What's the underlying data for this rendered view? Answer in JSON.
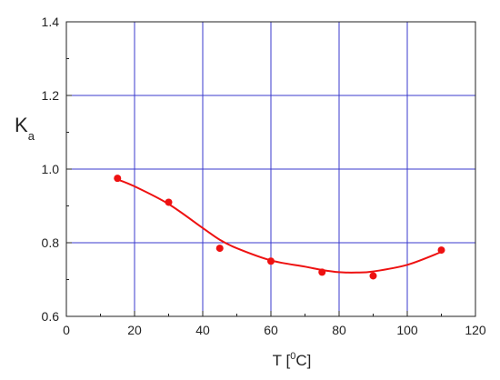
{
  "chart_data": {
    "type": "scatter",
    "xlabel": "T [°C]",
    "xlabel_parts": {
      "main": "T [",
      "sup": "0",
      "tail": "C]"
    },
    "ylabel": "Ka",
    "ylabel_parts": {
      "main": "K",
      "sub": "a"
    },
    "xlim": [
      0,
      120
    ],
    "ylim": [
      0.6,
      1.4
    ],
    "xticks": [
      0,
      20,
      40,
      60,
      80,
      100,
      120
    ],
    "yticks": [
      0.6,
      0.8,
      1.0,
      1.2,
      1.4
    ],
    "xtick_labels": [
      "0",
      "20",
      "40",
      "60",
      "80",
      "100",
      "120"
    ],
    "ytick_labels": [
      "0.6",
      "0.8",
      "1.0",
      "1.2",
      "1.4"
    ],
    "grid": true,
    "series": [
      {
        "x": [
          15,
          30,
          45,
          60,
          75,
          90,
          110
        ],
        "y": [
          0.975,
          0.91,
          0.785,
          0.75,
          0.72,
          0.71,
          0.78
        ],
        "fit_curve": {
          "x": [
            15,
            20,
            30,
            40,
            45,
            50,
            60,
            70,
            75,
            80,
            85,
            90,
            100,
            110
          ],
          "y": [
            0.972,
            0.953,
            0.905,
            0.84,
            0.808,
            0.785,
            0.752,
            0.735,
            0.726,
            0.72,
            0.719,
            0.722,
            0.74,
            0.775
          ]
        }
      }
    ],
    "colors": {
      "series": "#ee1111",
      "grid": "#3a3acc",
      "axis": "#222222"
    }
  }
}
